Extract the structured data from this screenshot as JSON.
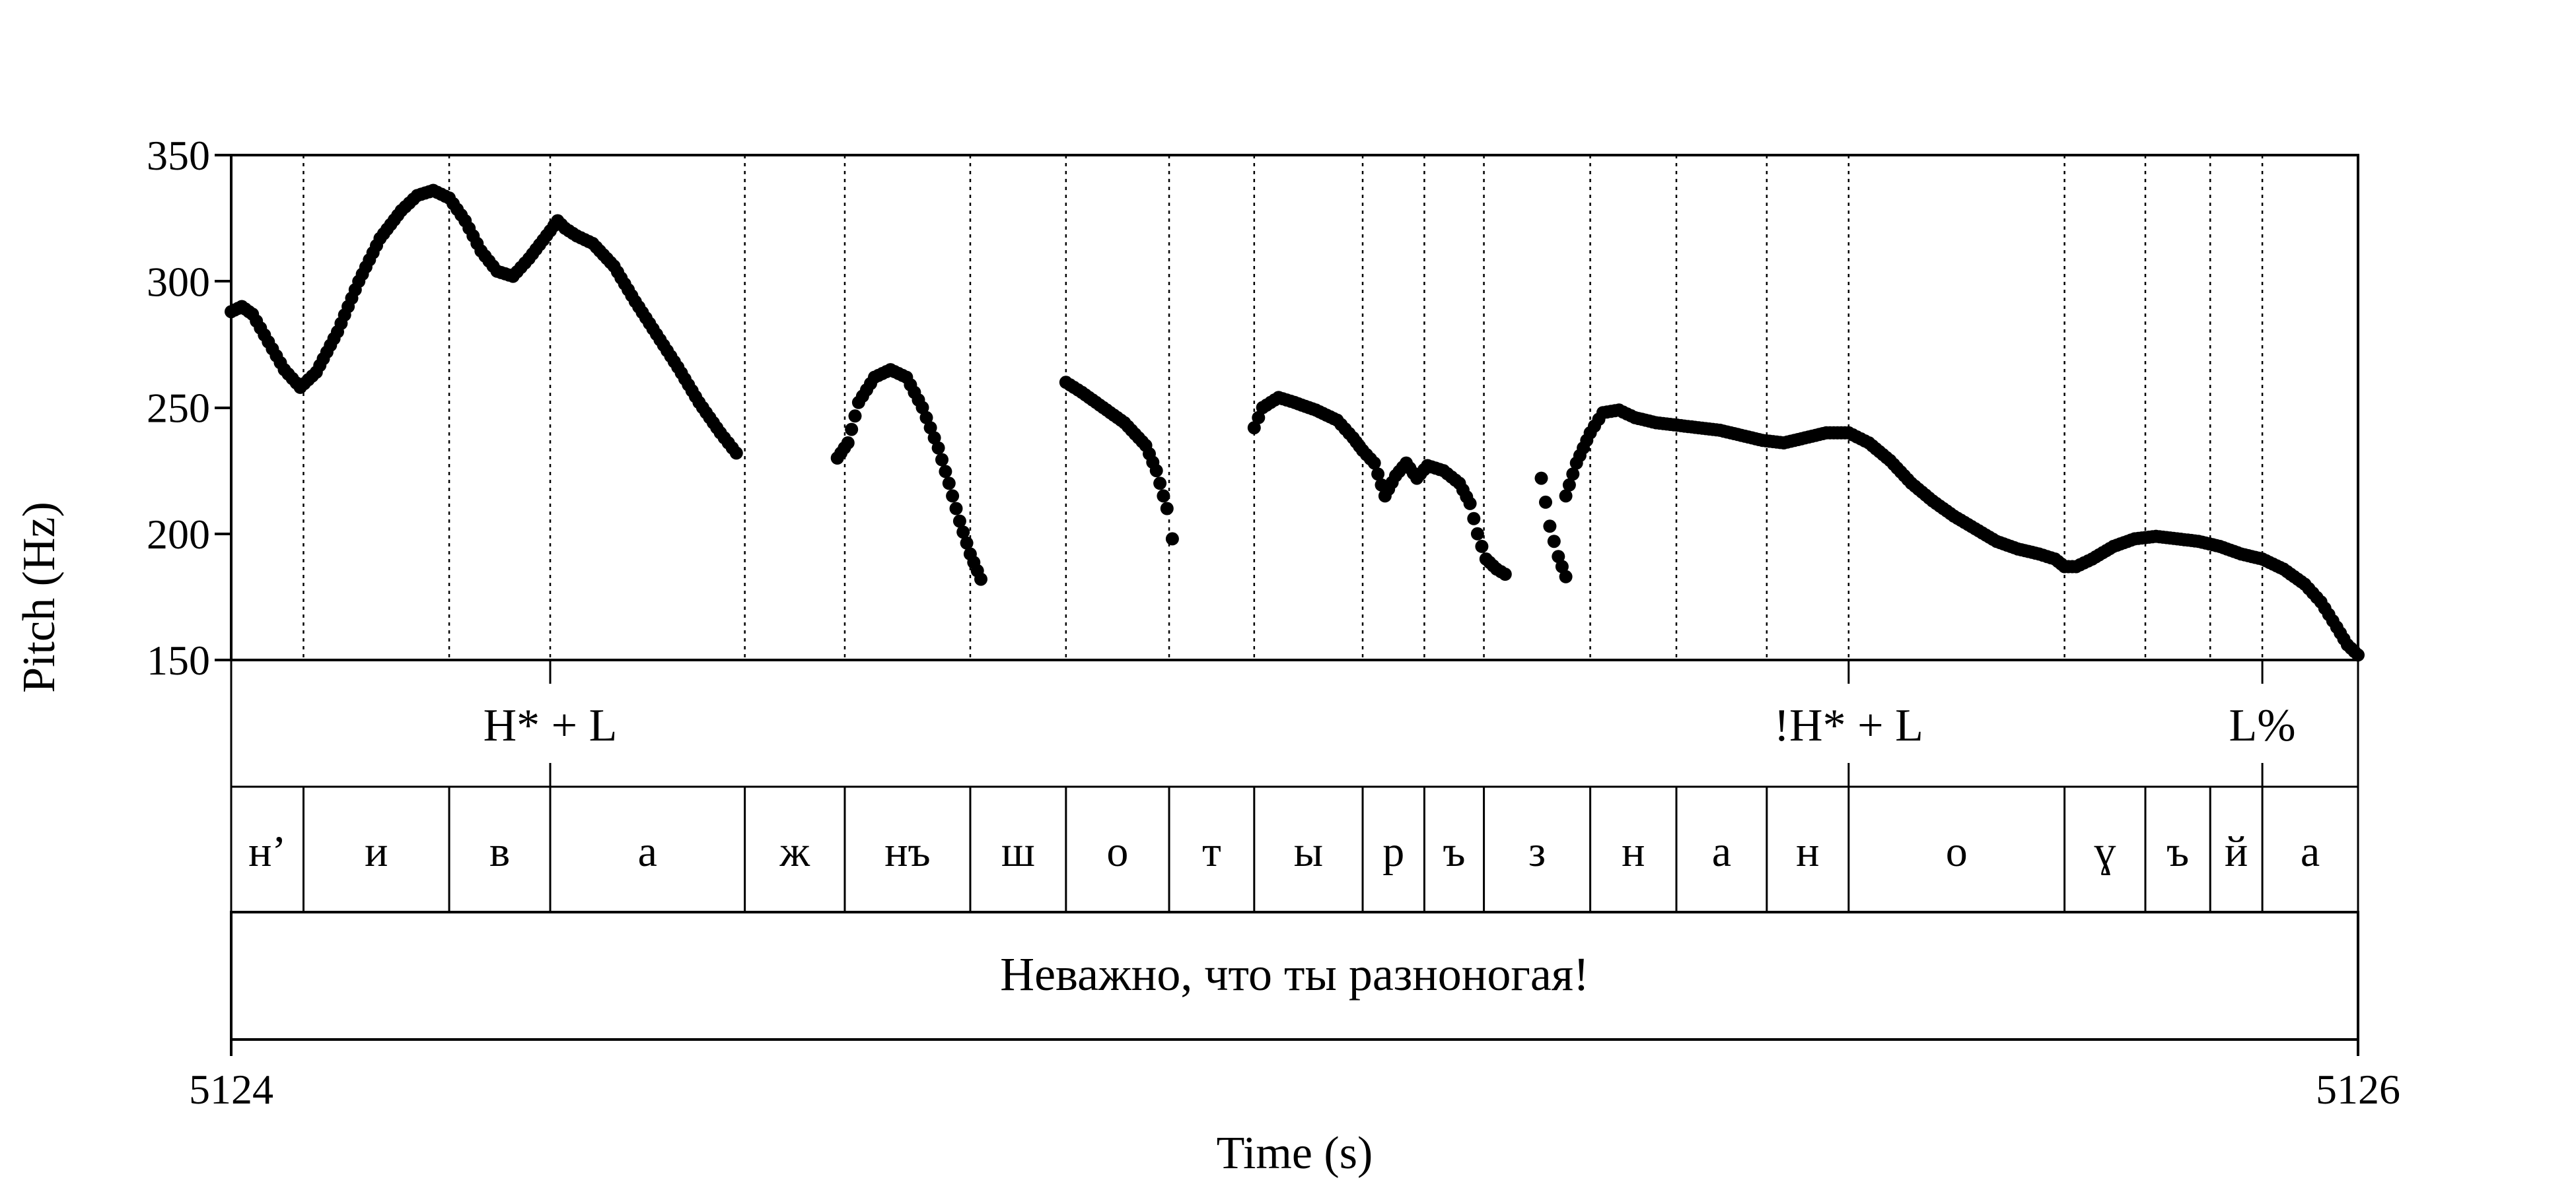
{
  "chart_data": {
    "type": "scatter",
    "xlabel": "Time (s)",
    "ylabel": "Pitch (Hz)",
    "xlim": [
      5124,
      5126
    ],
    "ylim": [
      150,
      350
    ],
    "x_tick_labels": [
      "5124",
      "5126"
    ],
    "y_ticks": [
      150,
      200,
      250,
      300,
      350
    ],
    "tier_boundaries_s": [
      5124.068,
      5124.205,
      5124.3,
      5124.483,
      5124.577,
      5124.695,
      5124.785,
      5124.882,
      5124.962,
      5125.064,
      5125.122,
      5125.178,
      5125.278,
      5125.359,
      5125.444,
      5125.521,
      5125.724,
      5125.8,
      5125.861,
      5125.91
    ],
    "tones": [
      {
        "label": "H* + L",
        "time": 5124.3
      },
      {
        "label": "!H* + L",
        "time": 5125.521
      },
      {
        "label": "L%",
        "time": 5125.91
      }
    ],
    "segments": [
      {
        "label": "н’",
        "start": 5124.0,
        "end": 5124.068
      },
      {
        "label": "и",
        "start": 5124.068,
        "end": 5124.205
      },
      {
        "label": "в",
        "start": 5124.205,
        "end": 5124.3
      },
      {
        "label": "а",
        "start": 5124.3,
        "end": 5124.483
      },
      {
        "label": "ж",
        "start": 5124.483,
        "end": 5124.577
      },
      {
        "label": "нъ",
        "start": 5124.577,
        "end": 5124.695
      },
      {
        "label": "ш",
        "start": 5124.695,
        "end": 5124.785
      },
      {
        "label": "о",
        "start": 5124.785,
        "end": 5124.882
      },
      {
        "label": "т",
        "start": 5124.882,
        "end": 5124.962
      },
      {
        "label": "ы",
        "start": 5124.962,
        "end": 5125.064
      },
      {
        "label": "р",
        "start": 5125.064,
        "end": 5125.122
      },
      {
        "label": "ъ",
        "start": 5125.122,
        "end": 5125.178
      },
      {
        "label": "з",
        "start": 5125.178,
        "end": 5125.278
      },
      {
        "label": "н",
        "start": 5125.278,
        "end": 5125.359
      },
      {
        "label": "а",
        "start": 5125.359,
        "end": 5125.444
      },
      {
        "label": "н",
        "start": 5125.444,
        "end": 5125.521
      },
      {
        "label": "о",
        "start": 5125.521,
        "end": 5125.724
      },
      {
        "label": "ɣ",
        "start": 5125.724,
        "end": 5125.8
      },
      {
        "label": "ъ",
        "start": 5125.8,
        "end": 5125.861
      },
      {
        "label": "й",
        "start": 5125.861,
        "end": 5125.91
      },
      {
        "label": "а",
        "start": 5125.91,
        "end": 5126.0
      }
    ],
    "sentence": "Неважно, что ты разноногая!",
    "pitch_contours": [
      [
        [
          5124.0,
          288
        ],
        [
          5124.01,
          290
        ],
        [
          5124.02,
          287
        ],
        [
          5124.035,
          276
        ],
        [
          5124.05,
          265
        ],
        [
          5124.065,
          258
        ],
        [
          5124.08,
          264
        ],
        [
          5124.1,
          280
        ],
        [
          5124.12,
          300
        ],
        [
          5124.14,
          317
        ],
        [
          5124.16,
          328
        ],
        [
          5124.175,
          334
        ],
        [
          5124.19,
          336
        ],
        [
          5124.205,
          333
        ],
        [
          5124.22,
          324
        ],
        [
          5124.235,
          312
        ],
        [
          5124.25,
          304
        ],
        [
          5124.265,
          302
        ],
        [
          5124.28,
          309
        ],
        [
          5124.3,
          320
        ],
        [
          5124.307,
          324
        ],
        [
          5124.314,
          321
        ],
        [
          5124.325,
          318
        ],
        [
          5124.34,
          315
        ],
        [
          5124.36,
          306
        ],
        [
          5124.38,
          292
        ],
        [
          5124.4,
          279
        ],
        [
          5124.42,
          266
        ],
        [
          5124.44,
          252
        ],
        [
          5124.46,
          240
        ],
        [
          5124.475,
          232
        ]
      ],
      [
        [
          5124.57,
          230
        ],
        [
          5124.58,
          236
        ],
        [
          5124.59,
          252
        ],
        [
          5124.605,
          262
        ],
        [
          5124.62,
          265
        ],
        [
          5124.635,
          262
        ],
        [
          5124.65,
          250
        ],
        [
          5124.665,
          234
        ],
        [
          5124.675,
          220
        ],
        [
          5124.685,
          205
        ],
        [
          5124.695,
          192
        ],
        [
          5124.705,
          182
        ]
      ],
      [
        [
          5124.785,
          260
        ],
        [
          5124.8,
          256
        ],
        [
          5124.82,
          250
        ],
        [
          5124.84,
          244
        ],
        [
          5124.86,
          235
        ],
        [
          5124.87,
          225
        ],
        [
          5124.88,
          210
        ],
        [
          5124.885,
          198
        ]
      ],
      [
        [
          5124.962,
          242
        ],
        [
          5124.97,
          250
        ],
        [
          5124.985,
          254
        ],
        [
          5125.0,
          252
        ],
        [
          5125.02,
          249
        ],
        [
          5125.04,
          245
        ],
        [
          5125.055,
          238
        ],
        [
          5125.064,
          233
        ],
        [
          5125.075,
          228
        ],
        [
          5125.085,
          215
        ],
        [
          5125.095,
          223
        ],
        [
          5125.105,
          228
        ],
        [
          5125.115,
          222
        ],
        [
          5125.125,
          227
        ],
        [
          5125.14,
          225
        ],
        [
          5125.155,
          220
        ],
        [
          5125.165,
          212
        ],
        [
          5125.172,
          200
        ],
        [
          5125.18,
          190
        ],
        [
          5125.19,
          186
        ],
        [
          5125.198,
          184
        ]
      ],
      [
        [
          5125.232,
          222
        ],
        [
          5125.24,
          203
        ],
        [
          5125.248,
          191
        ],
        [
          5125.255,
          183
        ]
      ],
      [
        [
          5125.255,
          215
        ],
        [
          5125.265,
          228
        ],
        [
          5125.278,
          240
        ],
        [
          5125.29,
          248
        ],
        [
          5125.305,
          249
        ],
        [
          5125.32,
          246
        ],
        [
          5125.34,
          244
        ],
        [
          5125.36,
          243
        ],
        [
          5125.38,
          242
        ],
        [
          5125.4,
          241
        ],
        [
          5125.42,
          239
        ],
        [
          5125.44,
          237
        ],
        [
          5125.46,
          236
        ],
        [
          5125.48,
          238
        ],
        [
          5125.5,
          240
        ],
        [
          5125.521,
          240
        ],
        [
          5125.54,
          236
        ],
        [
          5125.56,
          229
        ],
        [
          5125.58,
          220
        ],
        [
          5125.6,
          213
        ],
        [
          5125.62,
          207
        ],
        [
          5125.64,
          202
        ],
        [
          5125.66,
          197
        ],
        [
          5125.68,
          194
        ],
        [
          5125.7,
          192
        ],
        [
          5125.715,
          190
        ],
        [
          5125.724,
          187
        ],
        [
          5125.735,
          187
        ],
        [
          5125.75,
          190
        ],
        [
          5125.77,
          195
        ],
        [
          5125.79,
          198
        ],
        [
          5125.81,
          199
        ],
        [
          5125.83,
          198
        ],
        [
          5125.85,
          197
        ],
        [
          5125.87,
          195
        ],
        [
          5125.89,
          192
        ],
        [
          5125.91,
          190
        ],
        [
          5125.93,
          186
        ],
        [
          5125.95,
          180
        ],
        [
          5125.965,
          173
        ],
        [
          5125.98,
          163
        ],
        [
          5125.99,
          156
        ],
        [
          5126.0,
          152
        ]
      ]
    ]
  }
}
